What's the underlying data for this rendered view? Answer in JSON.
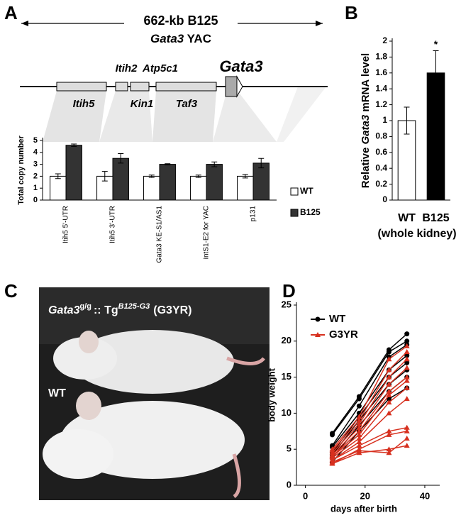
{
  "panel_labels": [
    "A",
    "B",
    "C",
    "D"
  ],
  "diagram": {
    "title": "662-kb B125",
    "subtitle": [
      "Gata3",
      "YAC"
    ],
    "genes_top": [
      "Itih2",
      "Atp5c1",
      "Gata3"
    ],
    "genes_bottom": [
      "Itih5",
      "Kin1",
      "Taf3"
    ]
  },
  "photo": {
    "label": [
      "Gata3",
      "g/g",
      ":: Tg",
      "B125-G3",
      "(G3YR)"
    ],
    "wt_label": "WT"
  },
  "chart_data": [
    {
      "type": "bar",
      "y_label": "Total copy number",
      "categories": [
        "Itih5 5'-UTR",
        "Itih5 3'-UTR",
        "Gata3 KE-S1/AS1",
        "intS1-E2 for YAC",
        "p131"
      ],
      "series": [
        {
          "name": "WT",
          "color": "#ffffff",
          "values": [
            2.0,
            2.0,
            2.0,
            2.0,
            2.0
          ],
          "errors": [
            0.2,
            0.4,
            0.1,
            0.1,
            0.15
          ]
        },
        {
          "name": "B125",
          "color": "#333333",
          "values": [
            4.6,
            3.5,
            3.0,
            3.0,
            3.1
          ],
          "errors": [
            0.1,
            0.4,
            0.05,
            0.2,
            0.4
          ]
        }
      ],
      "ylim": [
        0,
        5
      ],
      "yticks": [
        0,
        1,
        2,
        3,
        4,
        5
      ],
      "legend": "right"
    },
    {
      "type": "bar",
      "y_label": [
        "Relative",
        "Gata3",
        "mRNA level"
      ],
      "x_label": "(whole kidney)",
      "categories": [
        "WT",
        "B125"
      ],
      "values": [
        1.0,
        1.6
      ],
      "errors": [
        0.17,
        0.28
      ],
      "colors": [
        "#ffffff",
        "#000000"
      ],
      "annotation": "*",
      "ylim": [
        0,
        2
      ],
      "yticks": [
        0,
        0.2,
        0.4,
        0.6,
        0.8,
        1,
        1.2,
        1.4,
        1.6,
        1.8,
        2
      ]
    },
    {
      "type": "line",
      "x_label": "days after birth",
      "y_label": "body weight",
      "x": [
        9,
        18,
        28,
        34
      ],
      "xlim": [
        -3,
        45
      ],
      "xticks": [
        0,
        20,
        40
      ],
      "ylim": [
        0,
        25
      ],
      "yticks": [
        0,
        5,
        10,
        15,
        20,
        25
      ],
      "legend": "top-left",
      "groups": [
        {
          "name": "WT",
          "color": "#000000",
          "marker": "circle",
          "series": [
            [
              7.2,
              12.3,
              18.8,
              21
            ],
            [
              7.0,
              12.0,
              18.5,
              20
            ],
            [
              5.5,
              11.0,
              17.8,
              19.5
            ],
            [
              5.3,
              10.0,
              16.0,
              18
            ],
            [
              4.5,
              9.5,
              15.0,
              17
            ],
            [
              4.2,
              9.0,
              14.0,
              16
            ],
            [
              3.8,
              8.3,
              13.0,
              15
            ],
            [
              3.2,
              7.5,
              12.0,
              13.5
            ]
          ]
        },
        {
          "name": "G3YR",
          "color": "#d7301f",
          "marker": "triangle",
          "series": [
            [
              5.0,
              9.5,
              17.5,
              19.3
            ],
            [
              4.8,
              9.0,
              16.0,
              18.5
            ],
            [
              4.5,
              8.5,
              15.0,
              17.5
            ],
            [
              4.2,
              8.0,
              14.0,
              16.3
            ],
            [
              4.0,
              7.5,
              13.0,
              15
            ],
            [
              4.0,
              7.0,
              12.5,
              14.5
            ],
            [
              3.8,
              6.5,
              11.5,
              13.5
            ],
            [
              3.5,
              6.0,
              10.0,
              12
            ],
            [
              3.5,
              5.5,
              7.5,
              8
            ],
            [
              3.0,
              5.0,
              7.0,
              7.5
            ],
            [
              3.0,
              4.5,
              5.0,
              5.5
            ],
            [
              3.2,
              4.8,
              4.5,
              6.5
            ]
          ]
        }
      ]
    }
  ]
}
